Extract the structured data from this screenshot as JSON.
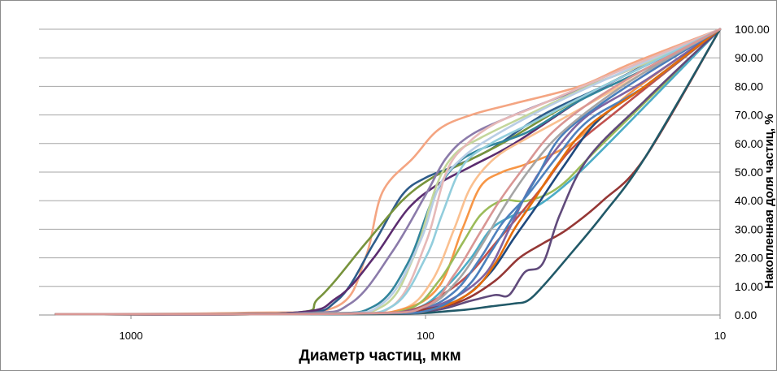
{
  "chart_data": {
    "type": "line",
    "x_scale": "log-reversed",
    "xlabel": "Диаметр частиц, мкм",
    "ylabel": "Накопленная доля частиц, %",
    "x_ticks": [
      {
        "value": 1000,
        "label": "1000"
      },
      {
        "value": 100,
        "label": "100"
      },
      {
        "value": 10,
        "label": "10"
      }
    ],
    "y_ticks": [
      "0.00",
      "10.00",
      "20.00",
      "30.00",
      "40.00",
      "50.00",
      "60.00",
      "70.00",
      "80.00",
      "90.00",
      "100.00"
    ],
    "xlim": [
      2000,
      10
    ],
    "ylim": [
      0,
      100
    ],
    "grid": "horizontal",
    "legend": "none",
    "series": [
      {
        "color": "#F4A582",
        "points": [
          [
            1800,
            0.3
          ],
          [
            400,
            0.8
          ],
          [
            200,
            3
          ],
          [
            160,
            20
          ],
          [
            140,
            43
          ],
          [
            110,
            55
          ],
          [
            90,
            65
          ],
          [
            70,
            70
          ],
          [
            50,
            74
          ],
          [
            30,
            80
          ],
          [
            20,
            88
          ],
          [
            10,
            100
          ]
        ]
      },
      {
        "color": "#2E5C8A",
        "points": [
          [
            1800,
            0.3
          ],
          [
            300,
            0.6
          ],
          [
            200,
            5
          ],
          [
            150,
            25
          ],
          [
            120,
            42
          ],
          [
            100,
            48
          ],
          [
            80,
            52
          ],
          [
            60,
            58
          ],
          [
            40,
            70
          ],
          [
            25,
            80
          ],
          [
            10,
            100
          ]
        ]
      },
      {
        "color": "#77933C",
        "points": [
          [
            1800,
            0.3
          ],
          [
            300,
            0.6
          ],
          [
            230,
            6
          ],
          [
            160,
            25
          ],
          [
            120,
            40
          ],
          [
            95,
            48
          ],
          [
            75,
            53
          ],
          [
            55,
            60
          ],
          [
            35,
            72
          ],
          [
            20,
            85
          ],
          [
            10,
            100
          ]
        ]
      },
      {
        "color": "#5B2C6F",
        "points": [
          [
            1800,
            0.3
          ],
          [
            300,
            0.6
          ],
          [
            200,
            6
          ],
          [
            150,
            20
          ],
          [
            115,
            37
          ],
          [
            90,
            46
          ],
          [
            70,
            52
          ],
          [
            50,
            60
          ],
          [
            30,
            75
          ],
          [
            20,
            85
          ],
          [
            10,
            100
          ]
        ]
      },
      {
        "color": "#8B7BAA",
        "points": [
          [
            1800,
            0.3
          ],
          [
            280,
            0.6
          ],
          [
            180,
            4
          ],
          [
            130,
            22
          ],
          [
            100,
            42
          ],
          [
            85,
            55
          ],
          [
            70,
            63
          ],
          [
            50,
            70
          ],
          [
            30,
            79
          ],
          [
            18,
            88
          ],
          [
            10,
            100
          ]
        ]
      },
      {
        "color": "#31859C",
        "points": [
          [
            1800,
            0.3
          ],
          [
            250,
            0.5
          ],
          [
            150,
            3
          ],
          [
            115,
            18
          ],
          [
            95,
            40
          ],
          [
            80,
            52
          ],
          [
            65,
            58
          ],
          [
            45,
            64
          ],
          [
            30,
            75
          ],
          [
            18,
            86
          ],
          [
            10,
            100
          ]
        ]
      },
      {
        "color": "#C3D69B",
        "points": [
          [
            1800,
            0.3
          ],
          [
            240,
            0.5
          ],
          [
            140,
            3
          ],
          [
            110,
            20
          ],
          [
            92,
            45
          ],
          [
            80,
            56
          ],
          [
            65,
            62
          ],
          [
            45,
            70
          ],
          [
            28,
            80
          ],
          [
            18,
            88
          ],
          [
            10,
            100
          ]
        ]
      },
      {
        "color": "#B9CDE5",
        "points": [
          [
            1800,
            0.3
          ],
          [
            230,
            0.5
          ],
          [
            140,
            4
          ],
          [
            105,
            25
          ],
          [
            90,
            45
          ],
          [
            75,
            55
          ],
          [
            60,
            62
          ],
          [
            40,
            72
          ],
          [
            25,
            82
          ],
          [
            10,
            100
          ]
        ]
      },
      {
        "color": "#E6B9B8",
        "points": [
          [
            1800,
            0.3
          ],
          [
            220,
            0.5
          ],
          [
            130,
            3
          ],
          [
            100,
            25
          ],
          [
            85,
            50
          ],
          [
            72,
            60
          ],
          [
            58,
            67
          ],
          [
            42,
            73
          ],
          [
            25,
            83
          ],
          [
            10,
            100
          ]
        ]
      },
      {
        "color": "#92CDDC",
        "points": [
          [
            1800,
            0.3
          ],
          [
            220,
            0.5
          ],
          [
            130,
            3
          ],
          [
            100,
            20
          ],
          [
            88,
            35
          ],
          [
            75,
            52
          ],
          [
            60,
            60
          ],
          [
            42,
            68
          ],
          [
            25,
            80
          ],
          [
            10,
            100
          ]
        ]
      },
      {
        "color": "#FAC090",
        "points": [
          [
            1800,
            0.3
          ],
          [
            200,
            0.5
          ],
          [
            120,
            2
          ],
          [
            95,
            12
          ],
          [
            80,
            30
          ],
          [
            70,
            45
          ],
          [
            58,
            55
          ],
          [
            45,
            62
          ],
          [
            30,
            72
          ],
          [
            10,
            100
          ]
        ]
      },
      {
        "color": "#F79646",
        "points": [
          [
            1800,
            0.3
          ],
          [
            200,
            0.5
          ],
          [
            120,
            2
          ],
          [
            90,
            10
          ],
          [
            75,
            30
          ],
          [
            65,
            45
          ],
          [
            55,
            50
          ],
          [
            45,
            53
          ],
          [
            32,
            60
          ],
          [
            20,
            78
          ],
          [
            10,
            100
          ]
        ]
      },
      {
        "color": "#9BBB59",
        "points": [
          [
            1800,
            0.3
          ],
          [
            200,
            0.5
          ],
          [
            115,
            2
          ],
          [
            90,
            12
          ],
          [
            75,
            25
          ],
          [
            65,
            35
          ],
          [
            55,
            40
          ],
          [
            45,
            40
          ],
          [
            35,
            45
          ],
          [
            25,
            60
          ],
          [
            10,
            100
          ]
        ]
      },
      {
        "color": "#4BACC6",
        "points": [
          [
            1800,
            0.3
          ],
          [
            190,
            0.5
          ],
          [
            110,
            2
          ],
          [
            85,
            10
          ],
          [
            70,
            20
          ],
          [
            60,
            30
          ],
          [
            50,
            35
          ],
          [
            42,
            38
          ],
          [
            34,
            45
          ],
          [
            25,
            58
          ],
          [
            10,
            100
          ]
        ]
      },
      {
        "color": "#C0504D",
        "points": [
          [
            1800,
            0.3
          ],
          [
            180,
            0.5
          ],
          [
            110,
            2
          ],
          [
            85,
            8
          ],
          [
            70,
            15
          ],
          [
            58,
            25
          ],
          [
            48,
            35
          ],
          [
            40,
            45
          ],
          [
            32,
            58
          ],
          [
            22,
            72
          ],
          [
            10,
            100
          ]
        ]
      },
      {
        "color": "#4F81BD",
        "points": [
          [
            1800,
            0.3
          ],
          [
            180,
            0.5
          ],
          [
            105,
            2
          ],
          [
            80,
            8
          ],
          [
            65,
            20
          ],
          [
            55,
            32
          ],
          [
            45,
            42
          ],
          [
            36,
            55
          ],
          [
            28,
            68
          ],
          [
            18,
            80
          ],
          [
            10,
            100
          ]
        ]
      },
      {
        "color": "#8064A2",
        "points": [
          [
            1800,
            0.3
          ],
          [
            175,
            0.5
          ],
          [
            105,
            2
          ],
          [
            80,
            6
          ],
          [
            62,
            15
          ],
          [
            52,
            30
          ],
          [
            44,
            45
          ],
          [
            36,
            58
          ],
          [
            28,
            70
          ],
          [
            18,
            82
          ],
          [
            10,
            100
          ]
        ]
      },
      {
        "color": "#1F497D",
        "points": [
          [
            1800,
            0.3
          ],
          [
            170,
            0.5
          ],
          [
            100,
            2
          ],
          [
            75,
            6
          ],
          [
            60,
            15
          ],
          [
            50,
            27
          ],
          [
            42,
            38
          ],
          [
            34,
            52
          ],
          [
            26,
            68
          ],
          [
            18,
            80
          ],
          [
            10,
            100
          ]
        ]
      },
      {
        "color": "#953735",
        "points": [
          [
            1800,
            0.3
          ],
          [
            170,
            0.5
          ],
          [
            100,
            2
          ],
          [
            75,
            5
          ],
          [
            58,
            12
          ],
          [
            48,
            20
          ],
          [
            40,
            25
          ],
          [
            33,
            30
          ],
          [
            25,
            40
          ],
          [
            18,
            55
          ],
          [
            10,
            100
          ]
        ]
      },
      {
        "color": "#604A7B",
        "points": [
          [
            1800,
            0.3
          ],
          [
            160,
            0.5
          ],
          [
            95,
            1.5
          ],
          [
            70,
            5
          ],
          [
            58,
            7
          ],
          [
            52,
            7
          ],
          [
            46,
            15
          ],
          [
            40,
            18
          ],
          [
            35,
            35
          ],
          [
            28,
            55
          ],
          [
            18,
            75
          ],
          [
            10,
            100
          ]
        ]
      },
      {
        "color": "#215968",
        "points": [
          [
            1800,
            0.3
          ],
          [
            150,
            0.3
          ],
          [
            80,
            1.5
          ],
          [
            60,
            3
          ],
          [
            50,
            4
          ],
          [
            45,
            5
          ],
          [
            40,
            10
          ],
          [
            33,
            20
          ],
          [
            25,
            35
          ],
          [
            18,
            55
          ],
          [
            10,
            100
          ]
        ]
      },
      {
        "color": "#E46C0A",
        "points": [
          [
            1800,
            0.3
          ],
          [
            150,
            0.5
          ],
          [
            95,
            2
          ],
          [
            70,
            8
          ],
          [
            58,
            18
          ],
          [
            50,
            30
          ],
          [
            43,
            40
          ],
          [
            36,
            52
          ],
          [
            28,
            66
          ],
          [
            18,
            80
          ],
          [
            10,
            100
          ]
        ]
      },
      {
        "color": "#4A7EBB",
        "points": [
          [
            1800,
            0.3
          ],
          [
            160,
            0.5
          ],
          [
            95,
            2
          ],
          [
            72,
            10
          ],
          [
            60,
            22
          ],
          [
            50,
            35
          ],
          [
            42,
            48
          ],
          [
            35,
            62
          ],
          [
            26,
            73
          ],
          [
            18,
            84
          ],
          [
            10,
            100
          ]
        ]
      },
      {
        "color": "#A5A5A5",
        "points": [
          [
            1800,
            0.3
          ],
          [
            165,
            0.5
          ],
          [
            100,
            3
          ],
          [
            78,
            12
          ],
          [
            64,
            25
          ],
          [
            54,
            38
          ],
          [
            45,
            50
          ],
          [
            36,
            62
          ],
          [
            26,
            74
          ],
          [
            18,
            85
          ],
          [
            10,
            100
          ]
        ]
      },
      {
        "color": "#D99694",
        "points": [
          [
            1800,
            0.3
          ],
          [
            170,
            0.5
          ],
          [
            100,
            3
          ],
          [
            80,
            14
          ],
          [
            66,
            28
          ],
          [
            56,
            40
          ],
          [
            46,
            52
          ],
          [
            37,
            64
          ],
          [
            27,
            75
          ],
          [
            18,
            86
          ],
          [
            10,
            100
          ]
        ]
      }
    ]
  }
}
